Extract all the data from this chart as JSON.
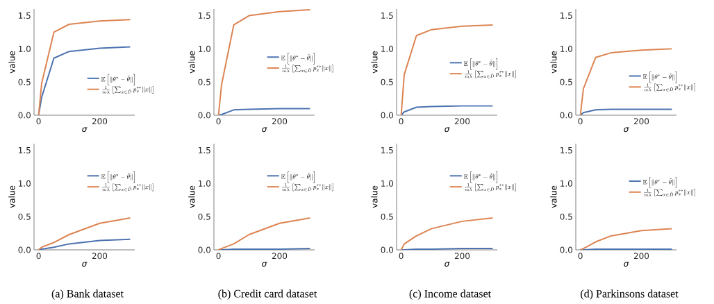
{
  "chart_data": [
    {
      "type": "line",
      "xlabel": "σ",
      "ylabel": "value",
      "x": [
        0,
        10,
        50,
        100,
        200,
        300
      ],
      "xlim": [
        -15,
        315
      ],
      "ylim": [
        0,
        1.6
      ],
      "xticks": [
        0,
        200
      ],
      "yticks": [
        {
          "value": 0,
          "label": "0.0"
        },
        {
          "value": 0.5,
          "label": "0.5"
        },
        {
          "value": 1,
          "label": "1.0"
        },
        {
          "value": 1.5,
          "label": "1.5"
        }
      ],
      "legend": "right",
      "grid": false,
      "series": [
        {
          "name": "\\mathbb{E}\\left[\\|\\theta^* - \\tilde{\\theta}\\|\\right]",
          "color": "#4c72b0",
          "values": [
            0,
            0.27,
            0.86,
            0.96,
            1.01,
            1.03
          ]
        },
        {
          "name": "\\frac{1}{m\\lambda}\\left[\\sum_{x\\in\\tilde{D}} p_x^{\\leftrightarrow}\\|x\\|\\right]",
          "color": "#dd8452",
          "values": [
            0,
            0.48,
            1.25,
            1.37,
            1.42,
            1.44
          ]
        }
      ]
    },
    {
      "type": "line",
      "xlabel": "σ",
      "ylabel": "value",
      "x": [
        0,
        10,
        50,
        100,
        200,
        300
      ],
      "xlim": [
        -15,
        315
      ],
      "ylim": [
        0,
        1.6
      ],
      "xticks": [
        0,
        200
      ],
      "yticks": [
        {
          "value": 0,
          "label": "0.0"
        },
        {
          "value": 0.5,
          "label": "0.5"
        },
        {
          "value": 1,
          "label": "1.0"
        },
        {
          "value": 1.5,
          "label": "1.5"
        }
      ],
      "legend": "right",
      "grid": false,
      "series": [
        {
          "name": "\\mathbb{E}\\left[\\|\\theta^* - \\tilde{\\theta}\\|\\right]",
          "color": "#4c72b0",
          "values": [
            0,
            0.01,
            0.08,
            0.09,
            0.1,
            0.1
          ]
        },
        {
          "name": "\\frac{1}{m\\lambda}\\left[\\sum_{x\\in\\tilde{D}} p_x^{\\leftrightarrow}\\|x\\|\\right]",
          "color": "#dd8452",
          "values": [
            0,
            0.46,
            1.36,
            1.5,
            1.56,
            1.59
          ]
        }
      ]
    },
    {
      "type": "line",
      "xlabel": "σ",
      "ylabel": "value",
      "x": [
        0,
        10,
        50,
        100,
        200,
        300
      ],
      "xlim": [
        -15,
        315
      ],
      "ylim": [
        0,
        1.6
      ],
      "xticks": [
        0,
        200
      ],
      "yticks": [
        {
          "value": 0,
          "label": "0.0"
        },
        {
          "value": 0.5,
          "label": "0.5"
        },
        {
          "value": 1,
          "label": "1.0"
        },
        {
          "value": 1.5,
          "label": "1.5"
        }
      ],
      "legend": "right",
      "grid": false,
      "series": [
        {
          "name": "\\mathbb{E}\\left[\\|\\theta^* - \\tilde{\\theta}\\|\\right]",
          "color": "#4c72b0",
          "values": [
            0,
            0.05,
            0.12,
            0.13,
            0.14,
            0.14
          ]
        },
        {
          "name": "\\frac{1}{m\\lambda}\\left[\\sum_{x\\in\\tilde{D}} p_x^{\\leftrightarrow}\\|x\\|\\right]",
          "color": "#dd8452",
          "values": [
            0,
            0.61,
            1.2,
            1.29,
            1.34,
            1.36
          ]
        }
      ]
    },
    {
      "type": "line",
      "xlabel": "σ",
      "ylabel": "value",
      "x": [
        0,
        10,
        50,
        100,
        200,
        300
      ],
      "xlim": [
        -15,
        315
      ],
      "ylim": [
        0,
        1.6
      ],
      "xticks": [
        0,
        200
      ],
      "yticks": [
        {
          "value": 0,
          "label": "0.0"
        },
        {
          "value": 0.5,
          "label": "0.5"
        },
        {
          "value": 1,
          "label": "1.0"
        },
        {
          "value": 1.5,
          "label": "1.5"
        }
      ],
      "legend": "right",
      "grid": false,
      "series": [
        {
          "name": "\\mathbb{E}\\left[\\|\\theta^* - \\tilde{\\theta}\\|\\right]",
          "color": "#4c72b0",
          "values": [
            0,
            0.04,
            0.08,
            0.09,
            0.09,
            0.09
          ]
        },
        {
          "name": "\\frac{1}{m\\lambda}\\left[\\sum_{x\\in\\tilde{D}} p_x^{\\leftrightarrow}\\|x\\|\\right]",
          "color": "#dd8452",
          "values": [
            0,
            0.4,
            0.87,
            0.94,
            0.98,
            1.0
          ]
        }
      ]
    },
    {
      "type": "line",
      "xlabel": "σ",
      "ylabel": "value",
      "x": [
        0,
        10,
        50,
        100,
        200,
        300
      ],
      "xlim": [
        -15,
        315
      ],
      "ylim": [
        0,
        1.6
      ],
      "xticks": [
        0,
        200
      ],
      "yticks": [
        {
          "value": 0,
          "label": "0.0"
        },
        {
          "value": 0.5,
          "label": "0.5"
        },
        {
          "value": 1,
          "label": "1.0"
        },
        {
          "value": 1.5,
          "label": "1.5"
        }
      ],
      "legend": "right",
      "grid": false,
      "annotations": [
        "(a) Bank dataset"
      ],
      "series": [
        {
          "name": "\\mathbb{E}\\left[\\|\\theta^* - \\tilde{\\theta}\\|\\right]",
          "color": "#4c72b0",
          "values": [
            0,
            0.01,
            0.04,
            0.09,
            0.14,
            0.16
          ]
        },
        {
          "name": "\\frac{1}{m\\lambda}\\left[\\sum_{x\\in\\tilde{D}} p_x^{\\leftrightarrow}\\|x\\|\\right]",
          "color": "#dd8452",
          "values": [
            0,
            0.04,
            0.11,
            0.23,
            0.4,
            0.48
          ]
        }
      ]
    },
    {
      "type": "line",
      "xlabel": "σ",
      "ylabel": "value",
      "x": [
        0,
        10,
        50,
        100,
        200,
        300
      ],
      "xlim": [
        -15,
        315
      ],
      "ylim": [
        0,
        1.6
      ],
      "xticks": [
        0,
        200
      ],
      "yticks": [
        {
          "value": 0,
          "label": "0.0"
        },
        {
          "value": 0.5,
          "label": "0.5"
        },
        {
          "value": 1,
          "label": "1.0"
        },
        {
          "value": 1.5,
          "label": "1.5"
        }
      ],
      "legend": "right",
      "grid": false,
      "annotations": [
        "(b) Credit card dataset"
      ],
      "series": [
        {
          "name": "\\mathbb{E}\\left[\\|\\theta^* - \\tilde{\\theta}\\|\\right]",
          "color": "#4c72b0",
          "values": [
            0,
            0,
            0.01,
            0.01,
            0.01,
            0.02
          ]
        },
        {
          "name": "\\frac{1}{m\\lambda}\\left[\\sum_{x\\in\\tilde{D}} p_x^{\\leftrightarrow}\\|x\\|\\right]",
          "color": "#dd8452",
          "values": [
            0,
            0.02,
            0.09,
            0.23,
            0.4,
            0.48
          ]
        }
      ]
    },
    {
      "type": "line",
      "xlabel": "σ",
      "ylabel": "value",
      "x": [
        0,
        10,
        50,
        100,
        200,
        300
      ],
      "xlim": [
        -15,
        315
      ],
      "ylim": [
        0,
        1.6
      ],
      "xticks": [
        0,
        200
      ],
      "yticks": [
        {
          "value": 0,
          "label": "0.0"
        },
        {
          "value": 0.5,
          "label": "0.5"
        },
        {
          "value": 1,
          "label": "1.0"
        },
        {
          "value": 1.5,
          "label": "1.5"
        }
      ],
      "legend": "right",
      "grid": false,
      "annotations": [
        "(c) Income dataset"
      ],
      "series": [
        {
          "name": "\\mathbb{E}\\left[\\|\\theta^* - \\tilde{\\theta}\\|\\right]",
          "color": "#4c72b0",
          "values": [
            0,
            0,
            0.01,
            0.01,
            0.02,
            0.02
          ]
        },
        {
          "name": "\\frac{1}{m\\lambda}\\left[\\sum_{x\\in\\tilde{D}} p_x^{\\leftrightarrow}\\|x\\|\\right]",
          "color": "#dd8452",
          "values": [
            0,
            0.09,
            0.21,
            0.32,
            0.43,
            0.48
          ]
        }
      ]
    },
    {
      "type": "line",
      "xlabel": "σ",
      "ylabel": "value",
      "x": [
        0,
        10,
        50,
        100,
        200,
        300
      ],
      "xlim": [
        -15,
        315
      ],
      "ylim": [
        0,
        1.6
      ],
      "xticks": [
        0,
        200
      ],
      "yticks": [
        {
          "value": 0,
          "label": "0.0"
        },
        {
          "value": 0.5,
          "label": "0.5"
        },
        {
          "value": 1,
          "label": "1.0"
        },
        {
          "value": 1.5,
          "label": "1.5"
        }
      ],
      "legend": "right",
      "grid": false,
      "annotations": [
        "(d) Parkinsons dataset"
      ],
      "series": [
        {
          "name": "\\mathbb{E}\\left[\\|\\theta^* - \\tilde{\\theta}\\|\\right]",
          "color": "#4c72b0",
          "values": [
            0,
            0,
            0.01,
            0.01,
            0.01,
            0.01
          ]
        },
        {
          "name": "\\frac{1}{m\\lambda}\\left[\\sum_{x\\in\\tilde{D}} p_x^{\\leftrightarrow}\\|x\\|\\right]",
          "color": "#dd8452",
          "values": [
            0,
            0.02,
            0.12,
            0.21,
            0.29,
            0.32
          ]
        }
      ]
    }
  ]
}
